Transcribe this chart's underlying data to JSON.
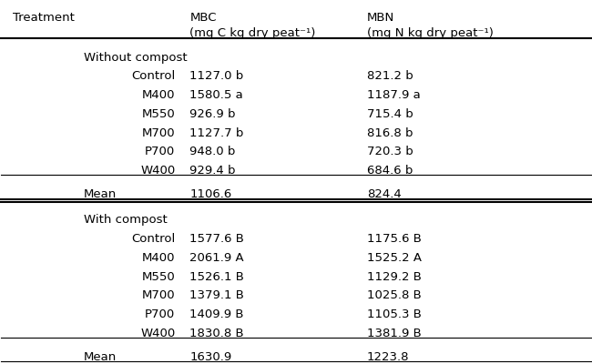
{
  "col_headers_line1": [
    "Treatment",
    "MBC",
    "MBN"
  ],
  "col_headers_line2": [
    "",
    "(mg C kg dry peat⁻¹)",
    "(mg N kg dry peat⁻¹)"
  ],
  "section1_header": "Without compost",
  "section1_rows": [
    [
      "Control",
      "1127.0 b",
      "821.2 b"
    ],
    [
      "M400",
      "1580.5 a",
      "1187.9 a"
    ],
    [
      "M550",
      "926.9 b",
      "715.4 b"
    ],
    [
      "M700",
      "1127.7 b",
      "816.8 b"
    ],
    [
      "P700",
      "948.0 b",
      "720.3 b"
    ],
    [
      "W400",
      "929.4 b",
      "684.6 b"
    ]
  ],
  "section1_mean": [
    "Mean",
    "1106.6",
    "824.4"
  ],
  "section2_header": "With compost",
  "section2_rows": [
    [
      "Control",
      "1577.6 B",
      "1175.6 B"
    ],
    [
      "M400",
      "2061.9 A",
      "1525.2 A"
    ],
    [
      "M550",
      "1526.1 B",
      "1129.2 B"
    ],
    [
      "M700",
      "1379.1 B",
      "1025.8 B"
    ],
    [
      "P700",
      "1409.9 B",
      "1105.3 B"
    ],
    [
      "W400",
      "1830.8 B",
      "1381.9 B"
    ]
  ],
  "section2_mean": [
    "Mean",
    "1630.9",
    "1223.8"
  ],
  "bg_color": "#ffffff",
  "text_color": "#000000",
  "font_size": 9.5,
  "header_font_size": 9.5
}
